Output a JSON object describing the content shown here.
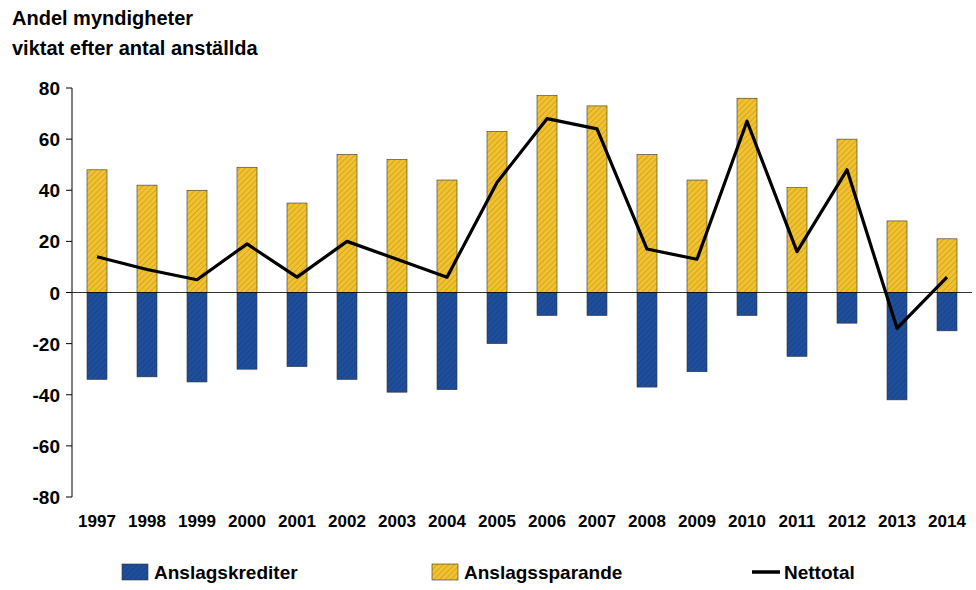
{
  "chart_data": {
    "type": "bar",
    "title": "Andel myndigheter",
    "subtitle": "viktat efter antal anställda",
    "categories": [
      "1997",
      "1998",
      "1999",
      "2000",
      "2001",
      "2002",
      "2003",
      "2004",
      "2005",
      "2006",
      "2007",
      "2008",
      "2009",
      "2010",
      "2011",
      "2012",
      "2013",
      "2014"
    ],
    "series": [
      {
        "name": "Anslagskrediter",
        "type": "bar",
        "color": "#1f4e9c",
        "values": [
          -34,
          -33,
          -35,
          -30,
          -29,
          -34,
          -39,
          -38,
          -20,
          -9,
          -9,
          -37,
          -31,
          -9,
          -25,
          -12,
          -42,
          -15
        ]
      },
      {
        "name": "Anslagssparande",
        "type": "bar",
        "color": "#f2c12e",
        "values": [
          48,
          42,
          40,
          49,
          35,
          54,
          52,
          44,
          63,
          77,
          73,
          54,
          44,
          76,
          41,
          60,
          28,
          21
        ]
      },
      {
        "name": "Nettotal",
        "type": "line",
        "color": "#000000",
        "values": [
          14,
          9,
          5,
          19,
          6,
          20,
          13,
          6,
          43,
          68,
          64,
          17,
          13,
          67,
          16,
          48,
          -14,
          6
        ]
      }
    ],
    "stacked": true,
    "ylim": [
      -80,
      80
    ],
    "yticks": [
      -80,
      -60,
      -40,
      -20,
      0,
      20,
      40,
      60,
      80
    ],
    "grid": false,
    "legend": "bottom"
  }
}
